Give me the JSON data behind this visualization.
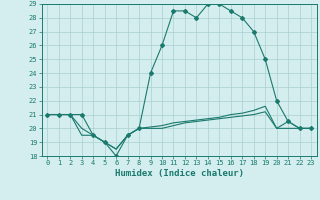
{
  "title": "",
  "xlabel": "Humidex (Indice chaleur)",
  "xlim": [
    -0.5,
    23.5
  ],
  "ylim": [
    18,
    29
  ],
  "yticks": [
    18,
    19,
    20,
    21,
    22,
    23,
    24,
    25,
    26,
    27,
    28,
    29
  ],
  "xticks": [
    0,
    1,
    2,
    3,
    4,
    5,
    6,
    7,
    8,
    9,
    10,
    11,
    12,
    13,
    14,
    15,
    16,
    17,
    18,
    19,
    20,
    21,
    22,
    23
  ],
  "bg_color": "#d4edee",
  "grid_color": "#aacfcf",
  "line_color": "#1a7a6e",
  "series1": {
    "x": [
      0,
      1,
      2,
      3,
      4,
      5,
      6,
      7,
      8,
      9,
      10,
      11,
      12,
      13,
      14,
      15,
      16,
      17,
      18,
      19,
      20,
      21,
      22,
      23
    ],
    "y": [
      21,
      21,
      21,
      21,
      19.5,
      19,
      18,
      19.5,
      20,
      24,
      26,
      28.5,
      28.5,
      28,
      29,
      29,
      28.5,
      28,
      27,
      25,
      22,
      20.5,
      20,
      20
    ]
  },
  "series2": {
    "x": [
      0,
      1,
      2,
      3,
      4,
      5,
      6,
      7,
      8,
      9,
      10,
      11,
      12,
      13,
      14,
      15,
      16,
      17,
      18,
      19,
      20,
      21,
      22,
      23
    ],
    "y": [
      21,
      21,
      21,
      19.5,
      19.5,
      19,
      18.5,
      19.5,
      20,
      20,
      20,
      20.2,
      20.4,
      20.5,
      20.6,
      20.7,
      20.8,
      20.9,
      21,
      21.2,
      20,
      20,
      20,
      20
    ]
  },
  "series3": {
    "x": [
      0,
      1,
      2,
      3,
      4,
      5,
      6,
      7,
      8,
      9,
      10,
      11,
      12,
      13,
      14,
      15,
      16,
      17,
      18,
      19,
      20,
      21,
      22,
      23
    ],
    "y": [
      21,
      21,
      21,
      20,
      19.5,
      19,
      18.5,
      19.5,
      20,
      20.1,
      20.2,
      20.4,
      20.5,
      20.6,
      20.7,
      20.8,
      21,
      21.1,
      21.3,
      21.6,
      20,
      20.5,
      20,
      20
    ]
  }
}
